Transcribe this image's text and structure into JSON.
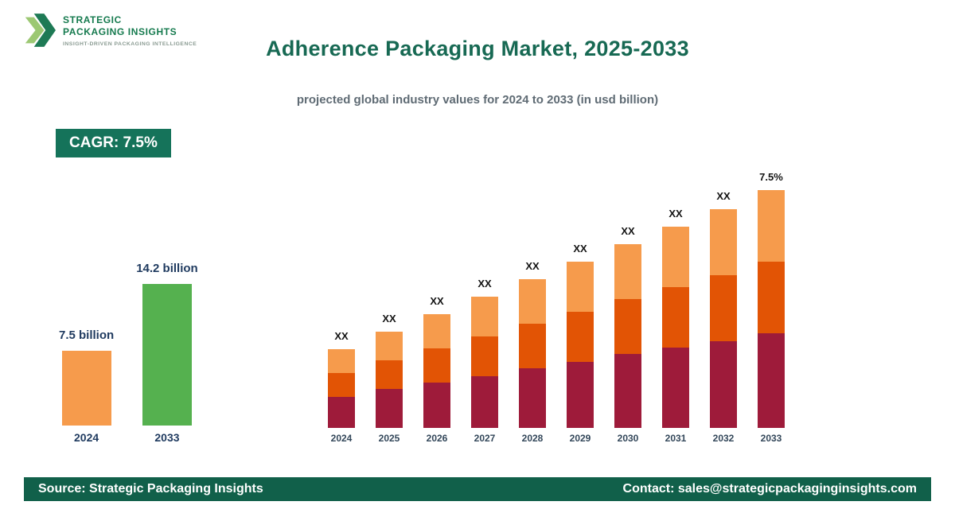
{
  "logo": {
    "line1": "STRATEGIC",
    "line2": "PACKAGING INSIGHTS",
    "tagline": "INSIGHT-DRIVEN PACKAGING INTELLIGENCE"
  },
  "header": {
    "title": "Adherence Packaging Market, 2025-2033",
    "subtitle": "projected global industry values for 2024 to 2033 (in usd billion)"
  },
  "cagr_badge": "CAGR: 7.5%",
  "colors": {
    "brand_green": "#15735a",
    "footer_green": "#11604a",
    "maroon": "#9e1b3a",
    "dark_orange": "#e25405",
    "light_orange": "#f69b4c",
    "growth_green": "#55b14f",
    "label_navy": "#1f3a5f"
  },
  "chart_data": [
    {
      "type": "bar",
      "name": "growth-comparison",
      "categories": [
        "2024",
        "2033"
      ],
      "values": [
        7.5,
        14.2
      ],
      "value_labels": [
        "7.5 billion",
        "14.2 billion"
      ],
      "colors": [
        "#f69b4c",
        "#55b14f"
      ],
      "ylabel": "",
      "note": "values in usd billion"
    },
    {
      "type": "bar",
      "name": "stacked-projection",
      "variant": "stacked",
      "categories": [
        "2024",
        "2025",
        "2026",
        "2027",
        "2028",
        "2029",
        "2030",
        "2031",
        "2032",
        "2033"
      ],
      "bar_labels": [
        "XX",
        "XX",
        "XX",
        "XX",
        "XX",
        "XX",
        "XX",
        "XX",
        "XX",
        "7.5%"
      ],
      "totals_relative": [
        99,
        121,
        143,
        165,
        187,
        209,
        231,
        253,
        275,
        299
      ],
      "segment_fractions": [
        0.4,
        0.3,
        0.3
      ],
      "series_order_bottom_to_top": [
        "segment-bottom",
        "segment-middle",
        "segment-top"
      ],
      "colors": [
        "#9e1b3a",
        "#e25405",
        "#f69b4c"
      ],
      "legend": "none",
      "grid": "off"
    }
  ],
  "footer": {
    "source": "Source: Strategic Packaging Insights",
    "contact": "Contact: sales@strategicpackaginginsights.com"
  }
}
